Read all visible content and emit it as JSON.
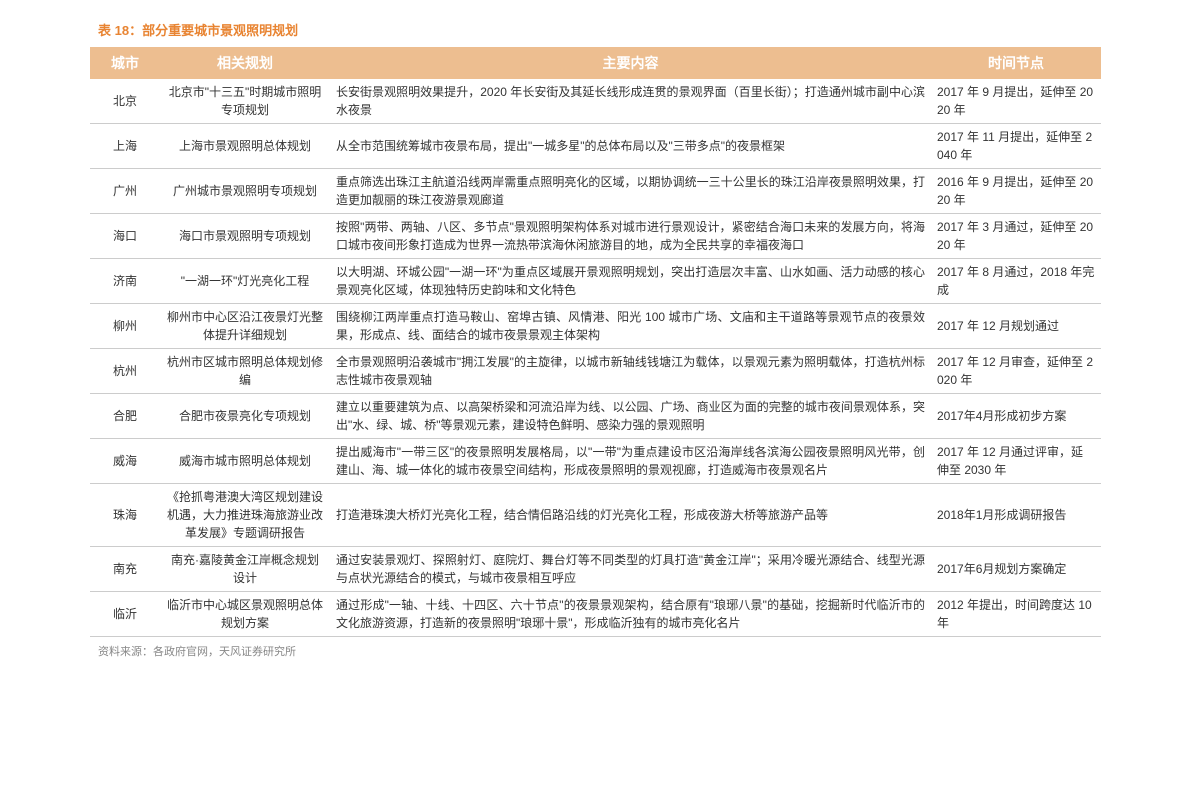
{
  "table_title": "表 18：部分重要城市景观照明规划",
  "headers": {
    "city": "城市",
    "plan": "相关规划",
    "content": "主要内容",
    "time": "时间节点"
  },
  "rows": [
    {
      "city": "北京",
      "plan": "北京市\"十三五\"时期城市照明专项规划",
      "content": "长安街景观照明效果提升，2020 年长安街及其延长线形成连贯的景观界面（百里长街）；打造通州城市副中心滨水夜景",
      "time": "2017 年 9 月提出，延伸至 2020 年"
    },
    {
      "city": "上海",
      "plan": "上海市景观照明总体规划",
      "content": "从全市范围统筹城市夜景布局，提出\"一城多星\"的总体布局以及\"三带多点\"的夜景框架",
      "time": "2017 年 11 月提出，延伸至 2040 年"
    },
    {
      "city": "广州",
      "plan": "广州城市景观照明专项规划",
      "content": "重点筛选出珠江主航道沿线两岸需重点照明亮化的区域，以期协调统一三十公里长的珠江沿岸夜景照明效果，打造更加靓丽的珠江夜游景观廊道",
      "time": "2016 年 9 月提出，延伸至 2020 年"
    },
    {
      "city": "海口",
      "plan": "海口市景观照明专项规划",
      "content": "按照\"两带、两轴、八区、多节点\"景观照明架构体系对城市进行景观设计，紧密结合海口未来的发展方向，将海口城市夜间形象打造成为世界一流热带滨海休闲旅游目的地，成为全民共享的幸福夜海口",
      "time": "2017 年 3 月通过，延伸至 2020 年"
    },
    {
      "city": "济南",
      "plan": "\"一湖一环\"灯光亮化工程",
      "content": "以大明湖、环城公园\"一湖一环\"为重点区域展开景观照明规划，突出打造层次丰富、山水如画、活力动感的核心景观亮化区域，体现独特历史韵味和文化特色",
      "time": "2017 年 8 月通过，2018 年完成"
    },
    {
      "city": "柳州",
      "plan": "柳州市中心区沿江夜景灯光整体提升详细规划",
      "content": "围绕柳江两岸重点打造马鞍山、窑埠古镇、风情港、阳光 100 城市广场、文庙和主干道路等景观节点的夜景效果，形成点、线、面结合的城市夜景景观主体架构",
      "time": "2017 年 12 月规划通过"
    },
    {
      "city": "杭州",
      "plan": "杭州市区城市照明总体规划修编",
      "content": "全市景观照明沿袭城市\"拥江发展\"的主旋律，以城市新轴线钱塘江为载体，以景观元素为照明载体，打造杭州标志性城市夜景观轴",
      "time": "2017 年 12 月审查，延伸至 2020 年"
    },
    {
      "city": "合肥",
      "plan": "合肥市夜景亮化专项规划",
      "content": "建立以重要建筑为点、以高架桥梁和河流沿岸为线、以公园、广场、商业区为面的完整的城市夜间景观体系，突出\"水、绿、城、桥\"等景观元素，建设特色鲜明、感染力强的景观照明",
      "time": "2017年4月形成初步方案"
    },
    {
      "city": "威海",
      "plan": "威海市城市照明总体规划",
      "content": "提出威海市\"一带三区\"的夜景照明发展格局，以\"一带\"为重点建设市区沿海岸线各滨海公园夜景照明风光带，创建山、海、城一体化的城市夜景空间结构，形成夜景照明的景观视廊，打造威海市夜景观名片",
      "time": "2017 年 12 月通过评审，延伸至 2030 年"
    },
    {
      "city": "珠海",
      "plan": "《抢抓粤港澳大湾区规划建设机遇，大力推进珠海旅游业改革发展》专题调研报告",
      "content": "打造港珠澳大桥灯光亮化工程，结合情侣路沿线的灯光亮化工程，形成夜游大桥等旅游产品等",
      "time": "2018年1月形成调研报告"
    },
    {
      "city": "南充",
      "plan": "南充·嘉陵黄金江岸概念规划设计",
      "content": "通过安装景观灯、探照射灯、庭院灯、舞台灯等不同类型的灯具打造\"黄金江岸\"；采用冷暖光源结合、线型光源与点状光源结合的模式，与城市夜景相互呼应",
      "time": "2017年6月规划方案确定"
    },
    {
      "city": "临沂",
      "plan": "临沂市中心城区景观照明总体规划方案",
      "content": "通过形成\"一轴、十线、十四区、六十节点\"的夜景景观架构，结合原有\"琅琊八景\"的基础，挖掘新时代临沂市的文化旅游资源，打造新的夜景照明\"琅琊十景\"，形成临沂独有的城市亮化名片",
      "time": "2012 年提出，时间跨度达 10 年"
    }
  ],
  "source": "资料来源：各政府官网，天风证券研究所",
  "footer_accent": ""
}
